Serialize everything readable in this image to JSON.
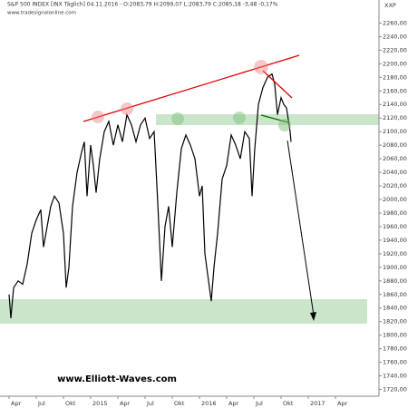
{
  "chart_data": {
    "type": "line",
    "title": "S&P 500 INDEX [INX Täglich] 04.11.2016 - O:2083,79 H:2099,07 L:2083,79 C:2085,18 -3,48 -0,17%",
    "subtitle": "www.tradesignalonline.com",
    "axis_label": "XXP",
    "annotation": "www.Elliott-Waves.com",
    "x": [
      0,
      0.2,
      0.5,
      1,
      1.5,
      2,
      2.5,
      3,
      3.5,
      3.8,
      4.2,
      4.6,
      5,
      5.5,
      6,
      6.3,
      6.6,
      7,
      7.5,
      8,
      8.3,
      8.6,
      9,
      9.3,
      9.6,
      10,
      10.5,
      11,
      11.5,
      12,
      12.5,
      13,
      13.5,
      14,
      14.5,
      15,
      15.5,
      16,
      16.4,
      16.8,
      17.2,
      17.6,
      18,
      18.5,
      19,
      19.5,
      20,
      20.5,
      21,
      21.3,
      21.6,
      22,
      22.3,
      22.6,
      23,
      23.5,
      24,
      24.5,
      25,
      25.5,
      26,
      26.5,
      26.8,
      27.1,
      27.5,
      28,
      28.5,
      29,
      29.3,
      29.6,
      30,
      30.3,
      30.6,
      31,
      31.1
    ],
    "series": [
      {
        "color": "#000000",
        "values": [
          1860,
          1825,
          1870,
          1880,
          1875,
          1905,
          1950,
          1970,
          1985,
          1930,
          1960,
          1990,
          2005,
          1995,
          1950,
          1870,
          1900,
          1990,
          2040,
          2070,
          2085,
          2005,
          2080,
          2050,
          2010,
          2060,
          2100,
          2115,
          2080,
          2110,
          2085,
          2125,
          2110,
          2085,
          2110,
          2120,
          2090,
          2100,
          1995,
          1880,
          1960,
          1990,
          1930,
          2010,
          2075,
          2095,
          2080,
          2060,
          2005,
          2020,
          1920,
          1880,
          1850,
          1900,
          1950,
          2030,
          2050,
          2095,
          2080,
          2060,
          2100,
          2090,
          2005,
          2075,
          2140,
          2165,
          2180,
          2185,
          2170,
          2125,
          2150,
          2140,
          2135,
          2100,
          2085
        ]
      }
    ],
    "xlim": [
      -1,
      40.8
    ],
    "xticks": [
      {
        "value": 0,
        "label": "Apr"
      },
      {
        "value": 3,
        "label": "Jul"
      },
      {
        "value": 6,
        "label": "Okt"
      },
      {
        "value": 9,
        "label": "2015"
      },
      {
        "value": 12,
        "label": "Apr"
      },
      {
        "value": 15,
        "label": "Jul"
      },
      {
        "value": 18,
        "label": "Okt"
      },
      {
        "value": 21,
        "label": "2016"
      },
      {
        "value": 24,
        "label": "Apr"
      },
      {
        "value": 27,
        "label": "Jul"
      },
      {
        "value": 30,
        "label": "Okt"
      },
      {
        "value": 33,
        "label": "2017"
      },
      {
        "value": 36,
        "label": "Apr"
      }
    ],
    "ylim": [
      1710,
      2290
    ],
    "yticks": [
      {
        "value": 1720,
        "label": "1720,00"
      },
      {
        "value": 1740,
        "label": "1740,00"
      },
      {
        "value": 1760,
        "label": "1760,00"
      },
      {
        "value": 1780,
        "label": "1780,00"
      },
      {
        "value": 1800,
        "label": "1800,00"
      },
      {
        "value": 1820,
        "label": "1820,00"
      },
      {
        "value": 1840,
        "label": "1840,00"
      },
      {
        "value": 1860,
        "label": "1860,00"
      },
      {
        "value": 1880,
        "label": "1880,00"
      },
      {
        "value": 1900,
        "label": "1900,00"
      },
      {
        "value": 1920,
        "label": "1920,00"
      },
      {
        "value": 1940,
        "label": "1940,00"
      },
      {
        "value": 1960,
        "label": "1960,00"
      },
      {
        "value": 1980,
        "label": "1980,00"
      },
      {
        "value": 2000,
        "label": "2000,00"
      },
      {
        "value": 2020,
        "label": "2020,00"
      },
      {
        "value": 2040,
        "label": "2040,00"
      },
      {
        "value": 2060,
        "label": "2060,00"
      },
      {
        "value": 2080,
        "label": "2080,00"
      },
      {
        "value": 2100,
        "label": "2100,00"
      },
      {
        "value": 2120,
        "label": "2120,00"
      },
      {
        "value": 2140,
        "label": "2140,00"
      },
      {
        "value": 2160,
        "label": "2160,00"
      },
      {
        "value": 2180,
        "label": "2180,00"
      },
      {
        "value": 2200,
        "label": "2200,00"
      },
      {
        "value": 2220,
        "label": "2220,00"
      },
      {
        "value": 2240,
        "label": "2240,00"
      },
      {
        "value": 2260,
        "label": "2260,00"
      }
    ]
  }
}
